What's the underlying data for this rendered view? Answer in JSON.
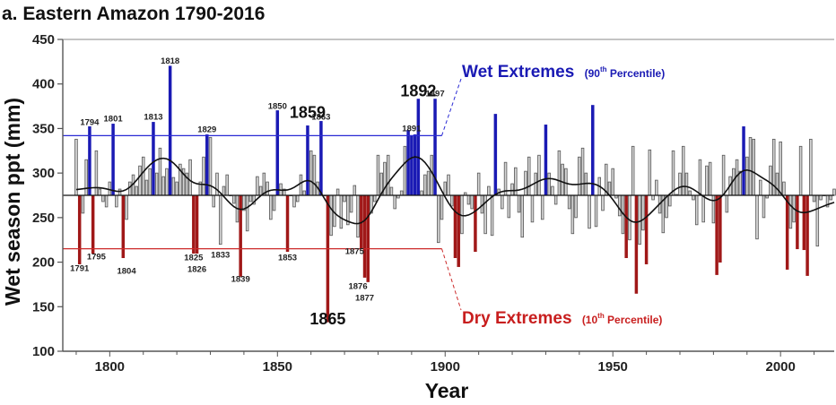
{
  "chart_data": {
    "type": "bar",
    "title": "a. Eastern Amazon 1790-2016",
    "xlabel": "Year",
    "ylabel": "Wet season ppt (mm)",
    "xlim": [
      1786,
      2016
    ],
    "ylim": [
      100,
      450
    ],
    "x_ticks": [
      1800,
      1850,
      1900,
      1950,
      2000
    ],
    "y_ticks": [
      100,
      150,
      200,
      250,
      300,
      350,
      400,
      450
    ],
    "baseline_mean": 275,
    "thresholds": {
      "wet_90th": 342,
      "dry_10th": 215
    },
    "grid": false,
    "colors": {
      "normal": "#d4d4d4",
      "wet": "#1a1ab4",
      "dry": "#a01818",
      "wet_line": "#2a2ad4",
      "dry_line": "#cc2a2a",
      "smooth": "#111111"
    },
    "legend": {
      "wet": {
        "main": "Wet Extremes",
        "sub_open": "(90",
        "sup": "th",
        "sub_close": " Percentile)"
      },
      "dry": {
        "main": "Dry Extremes",
        "sub_open": "(10",
        "sup": "th",
        "sub_close": " Percentile)"
      }
    },
    "highlight_labels": [
      {
        "text": "1859",
        "x": 1859,
        "y": 362
      },
      {
        "text": "1892",
        "x": 1892,
        "y": 386
      },
      {
        "text": "1865",
        "x": 1865,
        "y": 130
      }
    ],
    "year_labels": [
      {
        "text": "1794",
        "x": 1794,
        "y": 354
      },
      {
        "text": "1801",
        "x": 1801,
        "y": 358
      },
      {
        "text": "1813",
        "x": 1813,
        "y": 360
      },
      {
        "text": "1818",
        "x": 1818,
        "y": 423
      },
      {
        "text": "1829",
        "x": 1829,
        "y": 346
      },
      {
        "text": "1850",
        "x": 1850,
        "y": 372
      },
      {
        "text": "1863",
        "x": 1863,
        "y": 360
      },
      {
        "text": "1891",
        "x": 1890,
        "y": 347
      },
      {
        "text": "1897",
        "x": 1897,
        "y": 386
      },
      {
        "text": "1791",
        "x": 1791,
        "y": 190
      },
      {
        "text": "1795",
        "x": 1796,
        "y": 203
      },
      {
        "text": "1804",
        "x": 1805,
        "y": 187
      },
      {
        "text": "1825",
        "x": 1825,
        "y": 202
      },
      {
        "text": "1826",
        "x": 1826,
        "y": 189
      },
      {
        "text": "1833",
        "x": 1833,
        "y": 205
      },
      {
        "text": "1839",
        "x": 1839,
        "y": 178
      },
      {
        "text": "1853",
        "x": 1853,
        "y": 202
      },
      {
        "text": "1875",
        "x": 1873,
        "y": 209
      },
      {
        "text": "1876",
        "x": 1874,
        "y": 170
      },
      {
        "text": "1877",
        "x": 1876,
        "y": 157
      }
    ],
    "years": [
      1790,
      1791,
      1792,
      1793,
      1794,
      1795,
      1796,
      1797,
      1798,
      1799,
      1800,
      1801,
      1802,
      1803,
      1804,
      1805,
      1806,
      1807,
      1808,
      1809,
      1810,
      1811,
      1812,
      1813,
      1814,
      1815,
      1816,
      1817,
      1818,
      1819,
      1820,
      1821,
      1822,
      1823,
      1824,
      1825,
      1826,
      1827,
      1828,
      1829,
      1830,
      1831,
      1832,
      1833,
      1834,
      1835,
      1836,
      1837,
      1838,
      1839,
      1840,
      1841,
      1842,
      1843,
      1844,
      1845,
      1846,
      1847,
      1848,
      1849,
      1850,
      1851,
      1852,
      1853,
      1854,
      1855,
      1856,
      1857,
      1858,
      1859,
      1860,
      1861,
      1862,
      1863,
      1864,
      1865,
      1866,
      1867,
      1868,
      1869,
      1870,
      1871,
      1872,
      1873,
      1874,
      1875,
      1876,
      1877,
      1878,
      1879,
      1880,
      1881,
      1882,
      1883,
      1884,
      1885,
      1886,
      1887,
      1888,
      1889,
      1890,
      1891,
      1892,
      1893,
      1894,
      1895,
      1896,
      1897,
      1898,
      1899,
      1900,
      1901,
      1902,
      1903,
      1904,
      1905,
      1906,
      1907,
      1908,
      1909,
      1910,
      1911,
      1912,
      1913,
      1914,
      1915,
      1916,
      1917,
      1918,
      1919,
      1920,
      1921,
      1922,
      1923,
      1924,
      1925,
      1926,
      1927,
      1928,
      1929,
      1930,
      1931,
      1932,
      1933,
      1934,
      1935,
      1936,
      1937,
      1938,
      1939,
      1940,
      1941,
      1942,
      1943,
      1944,
      1945,
      1946,
      1947,
      1948,
      1949,
      1950,
      1951,
      1952,
      1953,
      1954,
      1955,
      1956,
      1957,
      1958,
      1959,
      1960,
      1961,
      1962,
      1963,
      1964,
      1965,
      1966,
      1967,
      1968,
      1969,
      1970,
      1971,
      1972,
      1973,
      1974,
      1975,
      1976,
      1977,
      1978,
      1979,
      1980,
      1981,
      1982,
      1983,
      1984,
      1985,
      1986,
      1987,
      1988,
      1989,
      1990,
      1991,
      1992,
      1993,
      1994,
      1995,
      1996,
      1997,
      1998,
      1999,
      2000,
      2001,
      2002,
      2003,
      2004,
      2005,
      2006,
      2007,
      2008,
      2009,
      2010,
      2011,
      2012,
      2013,
      2014,
      2015,
      2016
    ],
    "values": [
      338,
      198,
      255,
      315,
      352,
      210,
      325,
      282,
      268,
      262,
      290,
      355,
      262,
      282,
      205,
      248,
      290,
      298,
      285,
      308,
      318,
      292,
      305,
      357,
      300,
      328,
      296,
      305,
      420,
      295,
      290,
      310,
      305,
      300,
      315,
      210,
      210,
      290,
      318,
      343,
      340,
      262,
      300,
      220,
      285,
      298,
      275,
      266,
      245,
      184,
      258,
      235,
      268,
      265,
      296,
      285,
      300,
      290,
      248,
      258,
      370,
      288,
      282,
      212,
      275,
      262,
      268,
      298,
      280,
      353,
      325,
      320,
      290,
      358,
      275,
      133,
      230,
      240,
      282,
      238,
      268,
      242,
      256,
      286,
      228,
      215,
      183,
      178,
      255,
      268,
      320,
      300,
      312,
      320,
      284,
      260,
      272,
      280,
      330,
      348,
      342,
      343,
      383,
      280,
      298,
      302,
      320,
      383,
      222,
      248,
      290,
      298,
      263,
      205,
      195,
      232,
      278,
      265,
      260,
      212,
      300,
      255,
      232,
      285,
      230,
      366,
      282,
      260,
      312,
      250,
      288,
      306,
      256,
      228,
      302,
      318,
      245,
      300,
      320,
      248,
      354,
      300,
      285,
      265,
      325,
      310,
      305,
      260,
      232,
      250,
      318,
      328,
      300,
      238,
      376,
      240,
      295,
      258,
      310,
      290,
      305,
      272,
      252,
      232,
      205,
      225,
      330,
      165,
      220,
      236,
      198,
      326,
      270,
      292,
      255,
      233,
      250,
      263,
      325,
      276,
      300,
      330,
      300,
      280,
      270,
      242,
      315,
      245,
      308,
      312,
      244,
      186,
      200,
      320,
      256,
      296,
      305,
      315,
      302,
      352,
      318,
      340,
      338,
      226,
      292,
      250,
      272,
      308,
      338,
      300,
      335,
      290,
      192,
      238,
      245,
      215,
      330,
      214,
      185,
      338,
      268,
      218,
      270,
      275,
      262,
      270,
      282
    ]
  }
}
